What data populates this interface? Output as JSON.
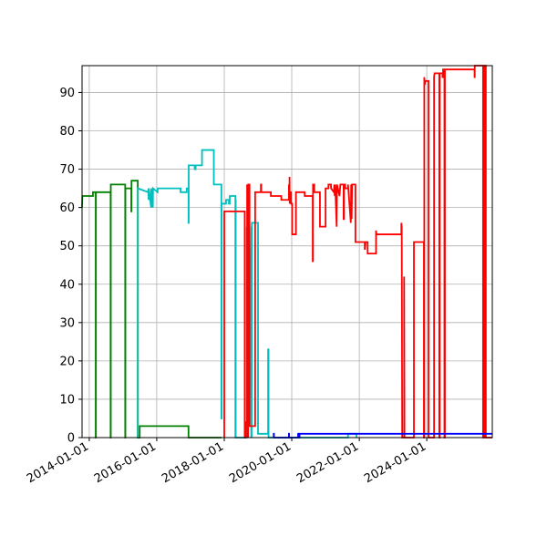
{
  "chart_data": {
    "type": "line",
    "title": "",
    "xlabel": "",
    "ylabel": "",
    "grid": true,
    "legend": "none",
    "xlim": [
      "2013-10-15",
      "2025-12-10"
    ],
    "ylim": [
      0,
      97
    ],
    "x_ticks": [
      "2014-01-01",
      "2016-01-01",
      "2018-01-01",
      "2020-01-01",
      "2022-01-01",
      "2024-01-01"
    ],
    "y_ticks": [
      "0",
      "10",
      "20",
      "30",
      "40",
      "50",
      "60",
      "70",
      "80",
      "90"
    ],
    "series": [
      {
        "color": "#008000",
        "points": [
          [
            "2013-10-15",
            60
          ],
          [
            "2013-10-18",
            63
          ],
          [
            "2014-02-10",
            63
          ],
          [
            "2014-02-10",
            64
          ],
          [
            "2014-03-12",
            64
          ],
          [
            "2014-03-12",
            0
          ],
          [
            "2014-03-14",
            0
          ],
          [
            "2014-03-14",
            64
          ],
          [
            "2014-08-20",
            64
          ],
          [
            "2014-08-20",
            0
          ],
          [
            "2014-08-22",
            0
          ],
          [
            "2014-08-22",
            66
          ],
          [
            "2015-01-25",
            66
          ],
          [
            "2015-01-25",
            0
          ],
          [
            "2015-01-27",
            0
          ],
          [
            "2015-01-27",
            65
          ],
          [
            "2015-04-01",
            65
          ],
          [
            "2015-04-01",
            59
          ],
          [
            "2015-04-03",
            59
          ],
          [
            "2015-04-03",
            67
          ],
          [
            "2015-06-10",
            67
          ],
          [
            "2015-06-10",
            0
          ],
          [
            "2015-07-01",
            0
          ],
          [
            "2015-07-01",
            3
          ],
          [
            "2016-12-10",
            3
          ],
          [
            "2016-12-10",
            0
          ],
          [
            "2017-12-01",
            0
          ]
        ]
      },
      {
        "color": "#00bfbf",
        "points": [
          [
            "2015-06-10",
            0
          ],
          [
            "2015-06-12",
            0
          ],
          [
            "2015-06-12",
            65
          ],
          [
            "2015-10-01",
            64
          ],
          [
            "2015-10-03",
            65
          ],
          [
            "2015-10-05",
            62
          ],
          [
            "2015-10-08",
            65
          ],
          [
            "2015-11-01",
            60
          ],
          [
            "2015-11-03",
            65
          ],
          [
            "2015-11-20",
            60
          ],
          [
            "2015-11-22",
            65
          ],
          [
            "2016-01-10",
            64
          ],
          [
            "2016-01-12",
            65
          ],
          [
            "2016-09-15",
            65
          ],
          [
            "2016-09-15",
            64
          ],
          [
            "2016-11-20",
            64
          ],
          [
            "2016-11-20",
            65
          ],
          [
            "2016-12-10",
            65
          ],
          [
            "2016-12-10",
            56
          ],
          [
            "2016-12-12",
            56
          ],
          [
            "2016-12-12",
            71
          ],
          [
            "2017-02-15",
            71
          ],
          [
            "2017-02-15",
            70
          ],
          [
            "2017-02-25",
            70
          ],
          [
            "2017-02-25",
            71
          ],
          [
            "2017-05-05",
            71
          ],
          [
            "2017-05-05",
            75
          ],
          [
            "2017-09-10",
            75
          ],
          [
            "2017-09-10",
            66
          ],
          [
            "2017-12-01",
            66
          ],
          [
            "2017-12-01",
            5
          ],
          [
            "2017-12-03",
            5
          ],
          [
            "2017-12-03",
            61
          ],
          [
            "2018-01-20",
            61
          ],
          [
            "2018-01-20",
            62
          ],
          [
            "2018-02-20",
            62
          ],
          [
            "2018-02-20",
            61
          ],
          [
            "2018-03-01",
            61
          ],
          [
            "2018-03-01",
            63
          ],
          [
            "2018-05-01",
            63
          ],
          [
            "2018-05-01",
            0
          ],
          [
            "2018-05-03",
            0
          ],
          [
            "2018-05-03",
            62
          ],
          [
            "2018-05-05",
            62
          ],
          [
            "2018-05-05",
            0
          ],
          [
            "2018-09-01",
            0
          ],
          [
            "2018-09-01",
            55
          ],
          [
            "2018-09-03",
            0
          ],
          [
            "2018-09-08",
            55
          ],
          [
            "2018-09-10",
            0
          ],
          [
            "2018-09-15",
            55
          ],
          [
            "2018-09-17",
            0
          ],
          [
            "2018-10-01",
            56
          ],
          [
            "2018-10-20",
            0
          ],
          [
            "2018-10-22",
            55
          ],
          [
            "2018-10-24",
            0
          ],
          [
            "2018-10-26",
            56
          ],
          [
            "2019-01-01",
            56
          ],
          [
            "2019-01-01",
            1
          ],
          [
            "2019-04-20",
            1
          ],
          [
            "2019-04-20",
            23
          ],
          [
            "2019-04-25",
            23
          ],
          [
            "2019-04-25",
            0
          ],
          [
            "2019-05-01",
            0
          ],
          [
            "2021-09-01",
            0
          ],
          [
            "2021-09-01",
            1
          ],
          [
            "2021-12-01",
            1
          ],
          [
            "2021-12-01",
            0
          ]
        ]
      },
      {
        "color": "#ff0000",
        "points": [
          [
            "2018-01-01",
            0
          ],
          [
            "2018-01-01",
            59
          ],
          [
            "2018-08-10",
            59
          ],
          [
            "2018-08-10",
            0
          ],
          [
            "2018-08-20",
            0
          ],
          [
            "2018-08-20",
            4
          ],
          [
            "2018-09-05",
            4
          ],
          [
            "2018-09-05",
            66
          ],
          [
            "2018-09-08",
            0
          ],
          [
            "2018-09-12",
            66
          ],
          [
            "2018-09-15",
            0
          ],
          [
            "2018-09-18",
            66
          ],
          [
            "2018-10-01",
            66
          ],
          [
            "2018-10-01",
            3
          ],
          [
            "2018-12-01",
            3
          ],
          [
            "2018-12-01",
            64
          ],
          [
            "2019-02-01",
            64
          ],
          [
            "2019-02-01",
            66
          ],
          [
            "2019-02-05",
            66
          ],
          [
            "2019-02-05",
            64
          ],
          [
            "2019-05-20",
            64
          ],
          [
            "2019-05-20",
            63
          ],
          [
            "2019-09-10",
            63
          ],
          [
            "2019-09-10",
            62
          ],
          [
            "2019-12-01",
            62
          ],
          [
            "2019-12-01",
            66
          ],
          [
            "2019-12-03",
            62
          ],
          [
            "2019-12-08",
            62
          ],
          [
            "2019-12-08",
            68
          ],
          [
            "2019-12-10",
            61
          ],
          [
            "2019-12-15",
            64
          ],
          [
            "2019-12-25",
            64
          ],
          [
            "2019-12-25",
            61
          ],
          [
            "2020-01-05",
            61
          ],
          [
            "2020-01-05",
            53
          ],
          [
            "2020-02-15",
            53
          ],
          [
            "2020-02-15",
            64
          ],
          [
            "2020-05-20",
            64
          ],
          [
            "2020-05-20",
            63
          ],
          [
            "2020-08-15",
            63
          ],
          [
            "2020-08-15",
            46
          ],
          [
            "2020-08-18",
            46
          ],
          [
            "2020-08-18",
            66
          ],
          [
            "2020-09-01",
            66
          ],
          [
            "2020-09-01",
            64
          ],
          [
            "2020-11-01",
            64
          ],
          [
            "2020-11-01",
            55
          ],
          [
            "2021-01-01",
            55
          ],
          [
            "2021-01-01",
            65
          ],
          [
            "2021-02-01",
            65
          ],
          [
            "2021-02-01",
            66
          ],
          [
            "2021-03-01",
            66
          ],
          [
            "2021-03-01",
            65
          ],
          [
            "2021-04-01",
            64
          ],
          [
            "2021-04-05",
            66
          ],
          [
            "2021-04-10",
            63
          ],
          [
            "2021-04-15",
            66
          ],
          [
            "2021-05-01",
            55
          ],
          [
            "2021-05-05",
            66
          ],
          [
            "2021-06-01",
            63
          ],
          [
            "2021-06-10",
            66
          ],
          [
            "2021-07-15",
            66
          ],
          [
            "2021-07-15",
            57
          ],
          [
            "2021-07-20",
            57
          ],
          [
            "2021-07-20",
            66
          ],
          [
            "2021-08-01",
            66
          ],
          [
            "2021-08-01",
            65
          ],
          [
            "2021-09-01",
            65
          ],
          [
            "2021-09-01",
            66
          ],
          [
            "2021-10-01",
            56
          ],
          [
            "2021-10-05",
            66
          ],
          [
            "2021-10-10",
            57
          ],
          [
            "2021-10-15",
            66
          ],
          [
            "2021-11-20",
            66
          ],
          [
            "2021-11-20",
            51
          ],
          [
            "2022-03-01",
            51
          ],
          [
            "2022-03-01",
            49
          ],
          [
            "2022-03-10",
            51
          ],
          [
            "2022-04-01",
            51
          ],
          [
            "2022-04-01",
            48
          ],
          [
            "2022-07-01",
            48
          ],
          [
            "2022-07-01",
            54
          ],
          [
            "2022-07-05",
            53
          ],
          [
            "2023-04-01",
            53
          ],
          [
            "2023-04-01",
            56
          ],
          [
            "2023-04-05",
            55
          ],
          [
            "2023-04-10",
            0
          ],
          [
            "2023-05-01",
            0
          ],
          [
            "2023-05-01",
            42
          ],
          [
            "2023-05-05",
            0
          ],
          [
            "2023-08-15",
            0
          ],
          [
            "2023-08-15",
            51
          ],
          [
            "2023-12-01",
            51
          ],
          [
            "2023-12-01",
            0
          ],
          [
            "2023-12-05",
            0
          ],
          [
            "2023-12-05",
            94
          ],
          [
            "2023-12-10",
            92
          ],
          [
            "2023-12-15",
            93
          ],
          [
            "2024-01-20",
            93
          ],
          [
            "2024-01-20",
            0
          ],
          [
            "2024-03-20",
            0
          ],
          [
            "2024-03-20",
            94
          ],
          [
            "2024-03-25",
            95
          ],
          [
            "2024-05-15",
            95
          ],
          [
            "2024-05-15",
            0
          ],
          [
            "2024-05-20",
            0
          ],
          [
            "2024-05-20",
            95
          ],
          [
            "2024-06-20",
            95
          ],
          [
            "2024-06-20",
            94
          ],
          [
            "2024-06-25",
            94
          ],
          [
            "2024-06-25",
            96
          ],
          [
            "2024-07-10",
            96
          ],
          [
            "2024-07-10",
            0
          ],
          [
            "2024-07-15",
            0
          ],
          [
            "2024-07-15",
            96
          ],
          [
            "2025-06-01",
            96
          ],
          [
            "2025-06-01",
            94
          ],
          [
            "2025-06-03",
            94
          ],
          [
            "2025-06-03",
            97
          ],
          [
            "2025-09-01",
            97
          ],
          [
            "2025-09-01",
            0
          ],
          [
            "2025-09-15",
            0
          ],
          [
            "2025-09-15",
            97
          ],
          [
            "2025-10-01",
            97
          ],
          [
            "2025-10-01",
            0
          ],
          [
            "2025-12-10",
            0
          ]
        ]
      },
      {
        "color": "#0000ff",
        "points": [
          [
            "2019-06-20",
            0
          ],
          [
            "2019-06-20",
            1
          ],
          [
            "2019-06-22",
            1
          ],
          [
            "2019-06-22",
            0
          ],
          [
            "2019-12-01",
            0
          ],
          [
            "2019-12-01",
            1
          ],
          [
            "2019-12-03",
            1
          ],
          [
            "2019-12-03",
            0
          ],
          [
            "2020-03-10",
            0
          ],
          [
            "2020-03-10",
            1
          ],
          [
            "2020-03-15",
            1
          ],
          [
            "2020-03-15",
            0
          ],
          [
            "2020-03-25",
            0
          ],
          [
            "2020-03-25",
            1
          ],
          [
            "2025-12-10",
            1
          ]
        ]
      }
    ]
  }
}
